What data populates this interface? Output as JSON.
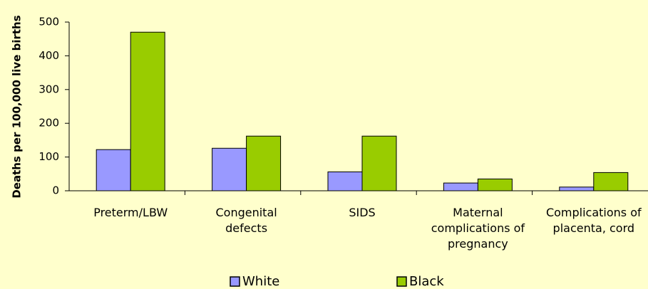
{
  "chart_data": {
    "type": "bar",
    "y_label": "Deaths per 100,000 live births",
    "categories": [
      "Preterm/LBW",
      "Congenital defects",
      "SIDS",
      "Maternal complications of pregnancy",
      "Complications of placenta, cord"
    ],
    "series": [
      {
        "name": "White",
        "color": "#9999ff",
        "values": [
          122,
          126,
          56,
          23,
          11
        ]
      },
      {
        "name": "Black",
        "color": "#99cc00",
        "values": [
          470,
          162,
          162,
          35,
          54
        ]
      }
    ],
    "ylim": [
      0,
      500
    ],
    "yticks": [
      0,
      100,
      200,
      300,
      400,
      500
    ],
    "legend": "bottom"
  }
}
